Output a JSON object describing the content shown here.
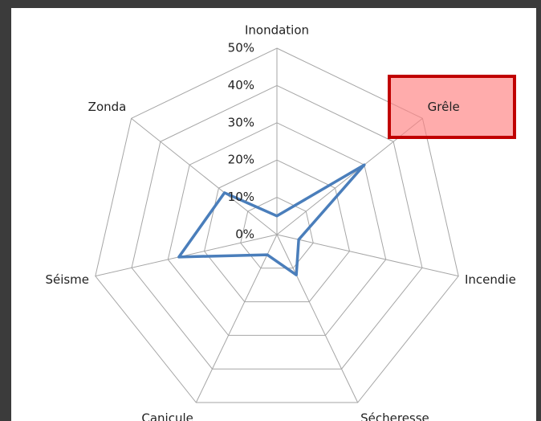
{
  "chart_data": {
    "type": "radar",
    "categories": [
      "Inondation",
      "Grêle",
      "Incendie",
      "Sécheresse",
      "Canicule",
      "Séisme",
      "Zonda"
    ],
    "values": [
      5,
      30,
      6,
      12,
      6,
      27,
      18
    ],
    "color": "#4a7ebb",
    "ylim": [
      0,
      50
    ],
    "yticks": [
      {
        "value": 0,
        "label": "0%"
      },
      {
        "value": 10,
        "label": "10%"
      },
      {
        "value": 20,
        "label": "20%"
      },
      {
        "value": 30,
        "label": "30%"
      },
      {
        "value": 40,
        "label": "40%"
      },
      {
        "value": 50,
        "label": "50%"
      }
    ],
    "grid": true
  }
}
